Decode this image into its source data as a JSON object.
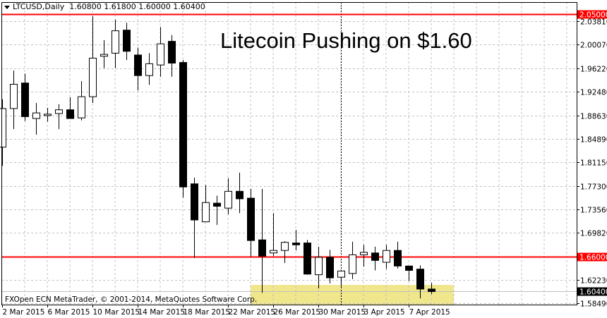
{
  "header": {
    "symbol": "LTCUSD,Daily",
    "open": "1.60800",
    "high": "1.61800",
    "low": "1.60000",
    "close": "1.60400"
  },
  "title": "Litecoin Pushing on $1.60",
  "copyright": "FXOpen ECN MetaTrader, © 2001-2014, MetaQuotes Software Corp.",
  "colors": {
    "bull_fill": "#ffffff",
    "bear_fill": "#000000",
    "level_line": "#ff0000",
    "zone": "#f0e68c",
    "grid": "#c0c0c0"
  },
  "chart_data": {
    "type": "candlestick",
    "title": "Litecoin Pushing on $1.60",
    "symbol": "LTCUSD",
    "timeframe": "Daily",
    "ylim": [
      1.583,
      2.069
    ],
    "first_date": "2 Mar 2015",
    "y_ticks": [
      "2.03810",
      "2.00070",
      "1.96220",
      "1.92480",
      "1.88630",
      "1.84890",
      "1.81150",
      "1.77300",
      "1.73560",
      "1.69820",
      "1.62230",
      "1.58490"
    ],
    "x_ticks": [
      "2 Mar 2015",
      "6 Mar 2015",
      "10 Mar 2015",
      "14 Mar 2015",
      "18 Mar 2015",
      "22 Mar 2015",
      "26 Mar 2015",
      "30 Mar 2015",
      "3 Apr 2015",
      "7 Apr 2015"
    ],
    "levels": [
      {
        "price": 2.05,
        "label": "2.05000",
        "color": "#ff0000",
        "kind": "resistance"
      },
      {
        "price": 1.66,
        "label": "1.66000",
        "color": "#ff0000",
        "kind": "support"
      },
      {
        "price": 1.604,
        "label": "1.60400",
        "color": "#000000",
        "kind": "current"
      }
    ],
    "zone": {
      "from_day": 22,
      "to_day": 40,
      "price_top": 1.6146
    },
    "vline_day": 30,
    "candles": [
      {
        "d": "2 Mar",
        "o": 1.836,
        "h": 1.913,
        "l": 1.806,
        "c": 1.898
      },
      {
        "d": "3 Mar",
        "o": 1.898,
        "h": 1.959,
        "l": 1.865,
        "c": 1.937
      },
      {
        "d": "4 Mar",
        "o": 1.939,
        "h": 1.954,
        "l": 1.878,
        "c": 1.885
      },
      {
        "d": "5 Mar",
        "o": 1.882,
        "h": 1.907,
        "l": 1.856,
        "c": 1.891
      },
      {
        "d": "6 Mar",
        "o": 1.889,
        "h": 1.899,
        "l": 1.877,
        "c": 1.889
      },
      {
        "d": "7 Mar",
        "o": 1.89,
        "h": 1.905,
        "l": 1.865,
        "c": 1.896
      },
      {
        "d": "8 Mar",
        "o": 1.896,
        "h": 1.916,
        "l": 1.882,
        "c": 1.882
      },
      {
        "d": "9 Mar",
        "o": 1.883,
        "h": 1.942,
        "l": 1.879,
        "c": 1.917
      },
      {
        "d": "10 Mar",
        "o": 1.917,
        "h": 2.046,
        "l": 1.907,
        "c": 1.979
      },
      {
        "d": "11 Mar",
        "o": 1.982,
        "h": 2.008,
        "l": 1.963,
        "c": 1.985
      },
      {
        "d": "12 Mar",
        "o": 1.987,
        "h": 2.041,
        "l": 1.963,
        "c": 2.023
      },
      {
        "d": "13 Mar",
        "o": 2.024,
        "h": 2.036,
        "l": 1.976,
        "c": 1.99
      },
      {
        "d": "14 Mar",
        "o": 1.984,
        "h": 1.996,
        "l": 1.927,
        "c": 1.951
      },
      {
        "d": "15 Mar",
        "o": 1.951,
        "h": 1.987,
        "l": 1.936,
        "c": 1.97
      },
      {
        "d": "16 Mar",
        "o": 1.968,
        "h": 2.029,
        "l": 1.949,
        "c": 2.002
      },
      {
        "d": "17 Mar",
        "o": 2.006,
        "h": 2.016,
        "l": 1.949,
        "c": 1.971
      },
      {
        "d": "18 Mar",
        "o": 1.972,
        "h": 1.976,
        "l": 1.755,
        "c": 1.772
      },
      {
        "d": "19 Mar",
        "o": 1.777,
        "h": 1.787,
        "l": 1.658,
        "c": 1.719
      },
      {
        "d": "20 Mar",
        "o": 1.716,
        "h": 1.775,
        "l": 1.716,
        "c": 1.747
      },
      {
        "d": "21 Mar",
        "o": 1.746,
        "h": 1.758,
        "l": 1.711,
        "c": 1.741
      },
      {
        "d": "22 Mar",
        "o": 1.738,
        "h": 1.786,
        "l": 1.728,
        "c": 1.765
      },
      {
        "d": "23 Mar",
        "o": 1.765,
        "h": 1.795,
        "l": 1.73,
        "c": 1.753
      },
      {
        "d": "24 Mar",
        "o": 1.754,
        "h": 1.769,
        "l": 1.66,
        "c": 1.686
      },
      {
        "d": "25 Mar",
        "o": 1.687,
        "h": 1.769,
        "l": 1.602,
        "c": 1.661
      },
      {
        "d": "26 Mar",
        "o": 1.666,
        "h": 1.73,
        "l": 1.661,
        "c": 1.67
      },
      {
        "d": "27 Mar",
        "o": 1.67,
        "h": 1.685,
        "l": 1.65,
        "c": 1.683
      },
      {
        "d": "28 Mar",
        "o": 1.682,
        "h": 1.703,
        "l": 1.67,
        "c": 1.679
      },
      {
        "d": "29 Mar",
        "o": 1.682,
        "h": 1.687,
        "l": 1.631,
        "c": 1.632
      },
      {
        "d": "30 Mar",
        "o": 1.631,
        "h": 1.676,
        "l": 1.609,
        "c": 1.659
      },
      {
        "d": "31 Mar",
        "o": 1.659,
        "h": 1.671,
        "l": 1.617,
        "c": 1.626
      },
      {
        "d": "1 Apr",
        "o": 1.627,
        "h": 1.638,
        "l": 1.612,
        "c": 1.637
      },
      {
        "d": "2 Apr",
        "o": 1.633,
        "h": 1.684,
        "l": 1.624,
        "c": 1.663
      },
      {
        "d": "3 Apr",
        "o": 1.663,
        "h": 1.679,
        "l": 1.644,
        "c": 1.667
      },
      {
        "d": "4 Apr",
        "o": 1.666,
        "h": 1.676,
        "l": 1.638,
        "c": 1.654
      },
      {
        "d": "5 Apr",
        "o": 1.651,
        "h": 1.679,
        "l": 1.64,
        "c": 1.67
      },
      {
        "d": "6 Apr",
        "o": 1.67,
        "h": 1.684,
        "l": 1.641,
        "c": 1.645
      },
      {
        "d": "7 Apr",
        "o": 1.645,
        "h": 1.645,
        "l": 1.621,
        "c": 1.638
      },
      {
        "d": "8 Apr",
        "o": 1.64,
        "h": 1.646,
        "l": 1.593,
        "c": 1.608
      },
      {
        "d": "9 Apr",
        "o": 1.608,
        "h": 1.618,
        "l": 1.6,
        "c": 1.604
      }
    ]
  }
}
